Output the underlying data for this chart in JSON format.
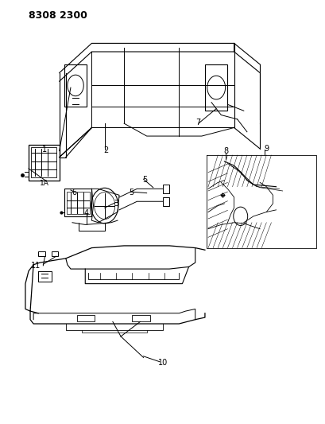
{
  "title_code": "8308 2300",
  "bg_color": "#ffffff",
  "line_color": "#000000",
  "title_fontsize": 9,
  "label_fontsize": 7,
  "fig_width": 4.1,
  "fig_height": 5.33,
  "dpi": 100
}
